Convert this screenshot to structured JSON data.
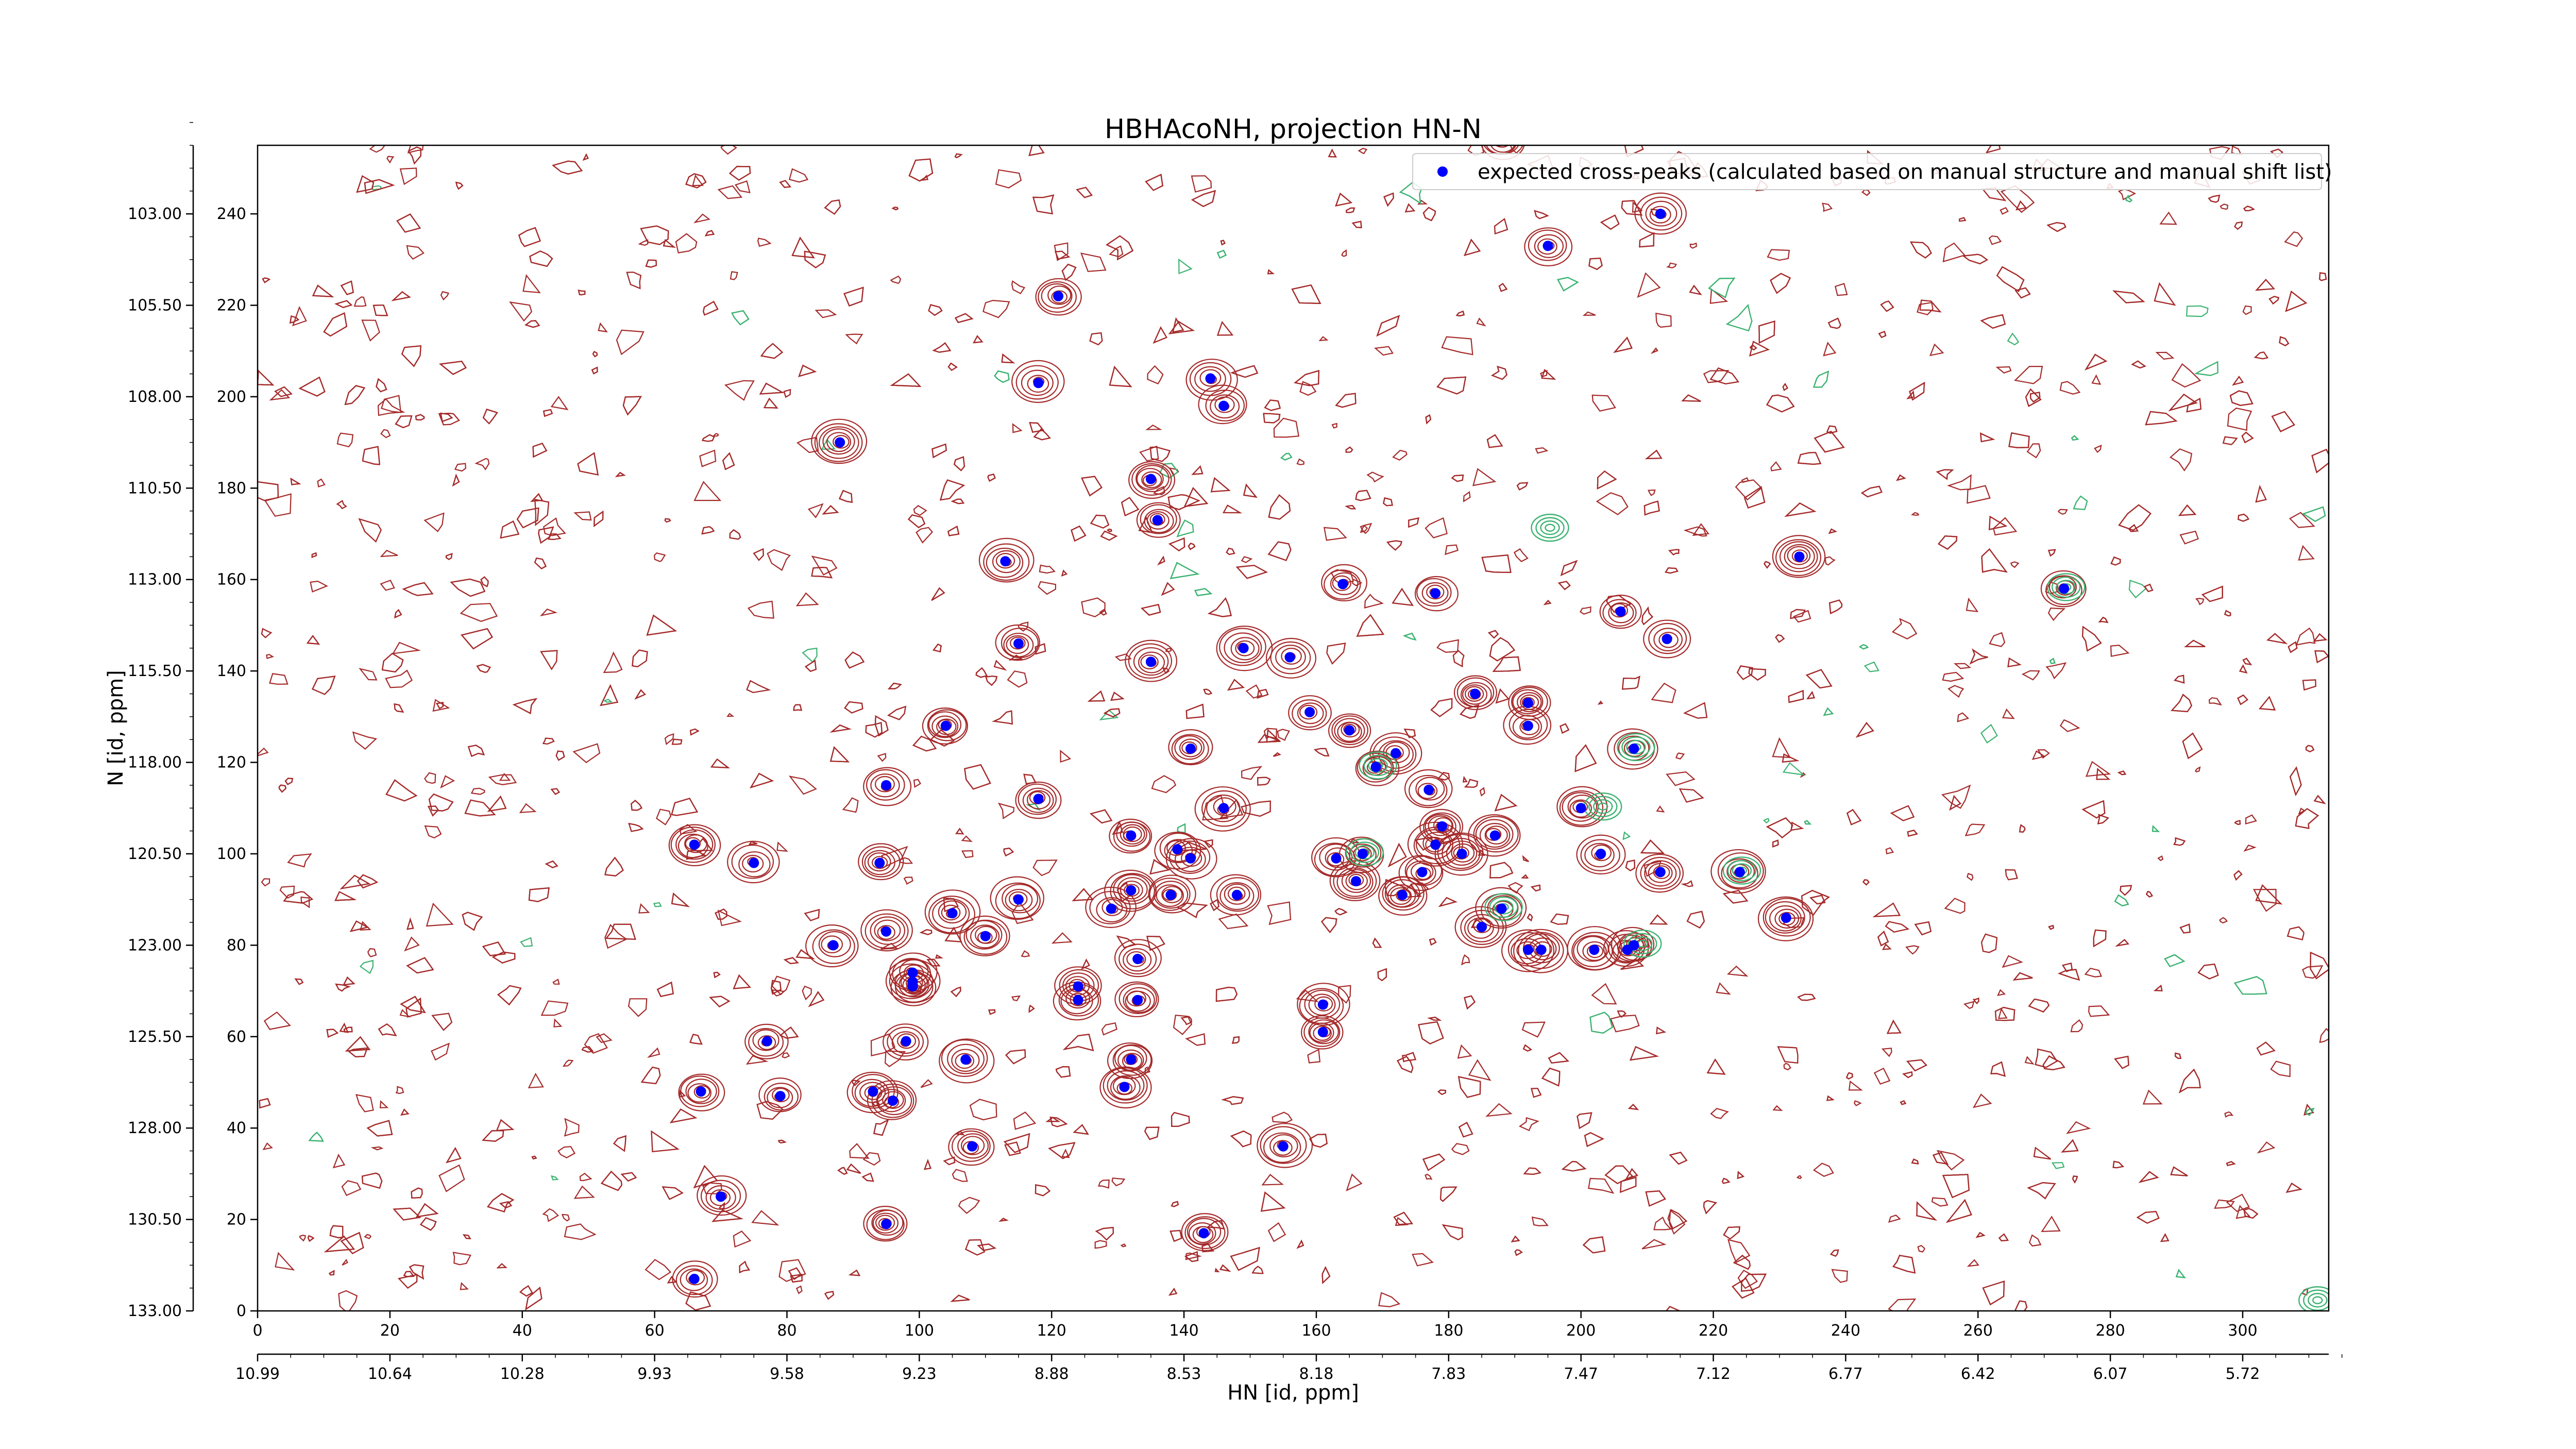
{
  "chart_data": {
    "type": "scatter",
    "title": "HBHAcoNH, projection HN-N",
    "xlabel": "HN [id, ppm]",
    "ylabel": "N [id, ppm]",
    "legend": {
      "position": "top-right",
      "entry": "expected cross-peaks (calculated based on manual structure and manual shift list)",
      "marker_color": "#0000ff"
    },
    "contour_colors": {
      "positive": "#a52a2a",
      "negative": "#3cb371"
    },
    "x_index_axis": {
      "range": [
        0,
        313
      ],
      "ticks": [
        "0",
        "20",
        "40",
        "60",
        "80",
        "100",
        "120",
        "140",
        "160",
        "180",
        "200",
        "220",
        "240",
        "260",
        "280",
        "300"
      ]
    },
    "x_ppm_axis": {
      "ticks": [
        "10.99",
        "10.64",
        "10.28",
        "9.93",
        "9.58",
        "9.23",
        "8.88",
        "8.53",
        "8.18",
        "7.83",
        "7.47",
        "7.12",
        "6.77",
        "6.42",
        "6.07",
        "5.72"
      ]
    },
    "y_index_axis": {
      "range": [
        0,
        255
      ],
      "ticks": [
        "0",
        "20",
        "40",
        "60",
        "80",
        "100",
        "120",
        "140",
        "160",
        "180",
        "200",
        "220",
        "240"
      ]
    },
    "y_ppm_axis": {
      "ticks": [
        "133.00",
        "130.50",
        "128.00",
        "125.50",
        "123.00",
        "120.50",
        "118.00",
        "115.50",
        "113.00",
        "110.50",
        "108.00",
        "105.50",
        "103.00"
      ]
    },
    "series": [
      {
        "name": "expected cross-peaks (calculated based on manual structure and manual shift list)",
        "color": "#0000ff",
        "points": [
          [
            188,
            256
          ],
          [
            212,
            240
          ],
          [
            195,
            233
          ],
          [
            121,
            222
          ],
          [
            118,
            203
          ],
          [
            144,
            204
          ],
          [
            146,
            198
          ],
          [
            88,
            190
          ],
          [
            135,
            182
          ],
          [
            136,
            173
          ],
          [
            113,
            164
          ],
          [
            233,
            165
          ],
          [
            273,
            158
          ],
          [
            164,
            159
          ],
          [
            178,
            157
          ],
          [
            206,
            153
          ],
          [
            213,
            147
          ],
          [
            115,
            146
          ],
          [
            149,
            145
          ],
          [
            156,
            143
          ],
          [
            135,
            142
          ],
          [
            184,
            135
          ],
          [
            192,
            133
          ],
          [
            159,
            131
          ],
          [
            104,
            128
          ],
          [
            165,
            127
          ],
          [
            192,
            128
          ],
          [
            208,
            123
          ],
          [
            141,
            123
          ],
          [
            172,
            122
          ],
          [
            169,
            119
          ],
          [
            95,
            115
          ],
          [
            177,
            114
          ],
          [
            118,
            112
          ],
          [
            146,
            110
          ],
          [
            200,
            110
          ],
          [
            179,
            106
          ],
          [
            132,
            104
          ],
          [
            187,
            104
          ],
          [
            66,
            102
          ],
          [
            139,
            101
          ],
          [
            141,
            99
          ],
          [
            178,
            102
          ],
          [
            182,
            100
          ],
          [
            163,
            99
          ],
          [
            167,
            100
          ],
          [
            75,
            98
          ],
          [
            94,
            98
          ],
          [
            203,
            100
          ],
          [
            224,
            96
          ],
          [
            176,
            96
          ],
          [
            212,
            96
          ],
          [
            166,
            94
          ],
          [
            173,
            91
          ],
          [
            148,
            91
          ],
          [
            138,
            91
          ],
          [
            132,
            92
          ],
          [
            129,
            88
          ],
          [
            115,
            90
          ],
          [
            105,
            87
          ],
          [
            188,
            88
          ],
          [
            95,
            83
          ],
          [
            110,
            82
          ],
          [
            185,
            84
          ],
          [
            231,
            86
          ],
          [
            87,
            80
          ],
          [
            133,
            77
          ],
          [
            192,
            79
          ],
          [
            194,
            79
          ],
          [
            202,
            79
          ],
          [
            207,
            79
          ],
          [
            208,
            80
          ],
          [
            99,
            74
          ],
          [
            99,
            72
          ],
          [
            99,
            71
          ],
          [
            124,
            71
          ],
          [
            124,
            68
          ],
          [
            133,
            68
          ],
          [
            161,
            67
          ],
          [
            161,
            61
          ],
          [
            77,
            59
          ],
          [
            98,
            59
          ],
          [
            107,
            55
          ],
          [
            132,
            55
          ],
          [
            131,
            49
          ],
          [
            67,
            48
          ],
          [
            79,
            47
          ],
          [
            93,
            48
          ],
          [
            96,
            46
          ],
          [
            108,
            36
          ],
          [
            155,
            36
          ],
          [
            70,
            25
          ],
          [
            95,
            19
          ],
          [
            143,
            17
          ],
          [
            66,
            7
          ]
        ]
      }
    ]
  }
}
